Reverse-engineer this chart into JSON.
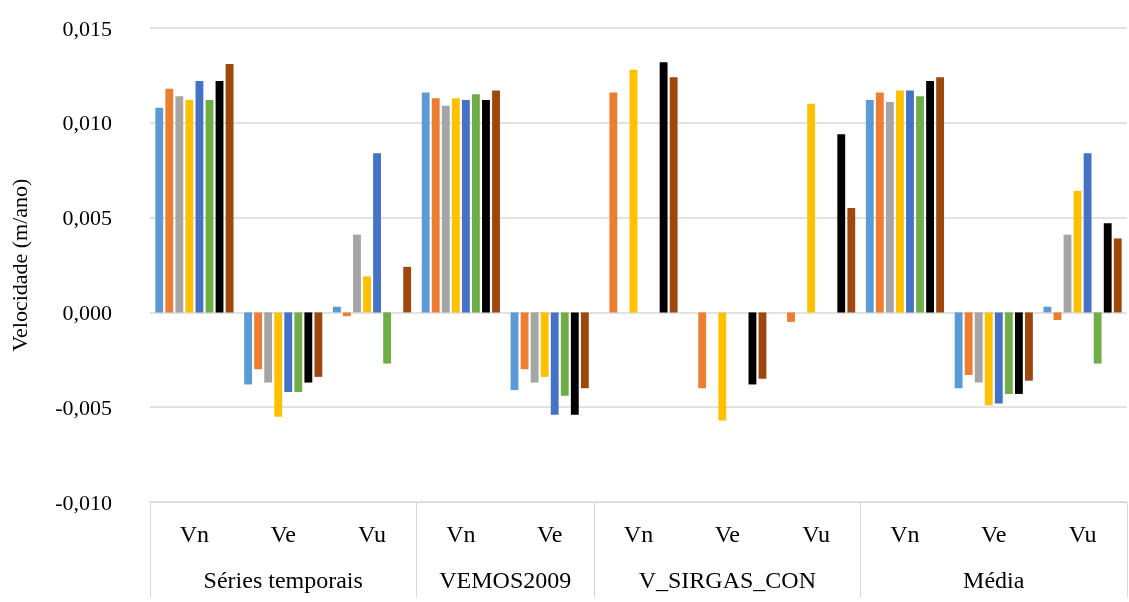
{
  "chart_data": {
    "type": "bar",
    "ylabel": "Velocidade (m/ano)",
    "categories": [
      "Vn",
      "Ve",
      "Vu",
      "Vn",
      "Ve",
      "Vn",
      "Ve",
      "Vu",
      "Vn",
      "Ve",
      "Vu"
    ],
    "annotations": [
      "Séries temporais",
      "VEMOS2009",
      "V_SIRGAS_CON",
      "Média"
    ],
    "series": [
      {
        "color": "#5b9bd5",
        "values": [
          0.0108,
          -0.0038,
          0.0003,
          0.0116,
          -0.0041,
          null,
          null,
          null,
          0.0112,
          -0.004,
          0.0003
        ]
      },
      {
        "color": "#ed7d31",
        "values": [
          0.0118,
          -0.003,
          -0.0002,
          0.0113,
          -0.003,
          0.0116,
          -0.004,
          -0.0005,
          0.0116,
          -0.0033,
          -0.0004
        ]
      },
      {
        "color": "#a5a5a5",
        "values": [
          0.0114,
          -0.0037,
          0.0041,
          0.0109,
          -0.0037,
          null,
          null,
          null,
          0.0111,
          -0.0037,
          0.0041
        ]
      },
      {
        "color": "#ffc000",
        "values": [
          0.0112,
          -0.0055,
          0.0019,
          0.0113,
          -0.0034,
          0.0128,
          -0.0057,
          0.011,
          0.0117,
          -0.0049,
          0.0064
        ]
      },
      {
        "color": "#4472c4",
        "values": [
          0.0122,
          -0.0042,
          0.0084,
          0.0112,
          -0.0054,
          null,
          null,
          null,
          0.0117,
          -0.0048,
          0.0084
        ]
      },
      {
        "color": "#70ad47",
        "values": [
          0.0112,
          -0.0042,
          -0.0027,
          0.0115,
          -0.0044,
          null,
          null,
          null,
          0.0114,
          -0.0043,
          -0.0027
        ]
      },
      {
        "color": "#000000",
        "values": [
          0.0122,
          -0.0037,
          null,
          0.0112,
          -0.0054,
          0.0132,
          -0.0038,
          0.0094,
          0.0122,
          -0.0043,
          0.0047
        ]
      },
      {
        "color": "#9e480e",
        "values": [
          0.0131,
          -0.0034,
          0.0024,
          0.0117,
          -0.004,
          0.0124,
          -0.0035,
          0.0055,
          0.0124,
          -0.0036,
          0.0039
        ]
      }
    ],
    "ylim": [
      -0.01,
      0.015
    ],
    "yticks": [
      {
        "value": -0.01,
        "label": "-0,010"
      },
      {
        "value": -0.005,
        "label": "-0,005"
      },
      {
        "value": 0,
        "label": "0,000"
      },
      {
        "value": 0.005,
        "label": "0,005"
      },
      {
        "value": 0.01,
        "label": "0,010"
      },
      {
        "value": 0.015,
        "label": "0,015"
      }
    ],
    "grid": "y"
  }
}
